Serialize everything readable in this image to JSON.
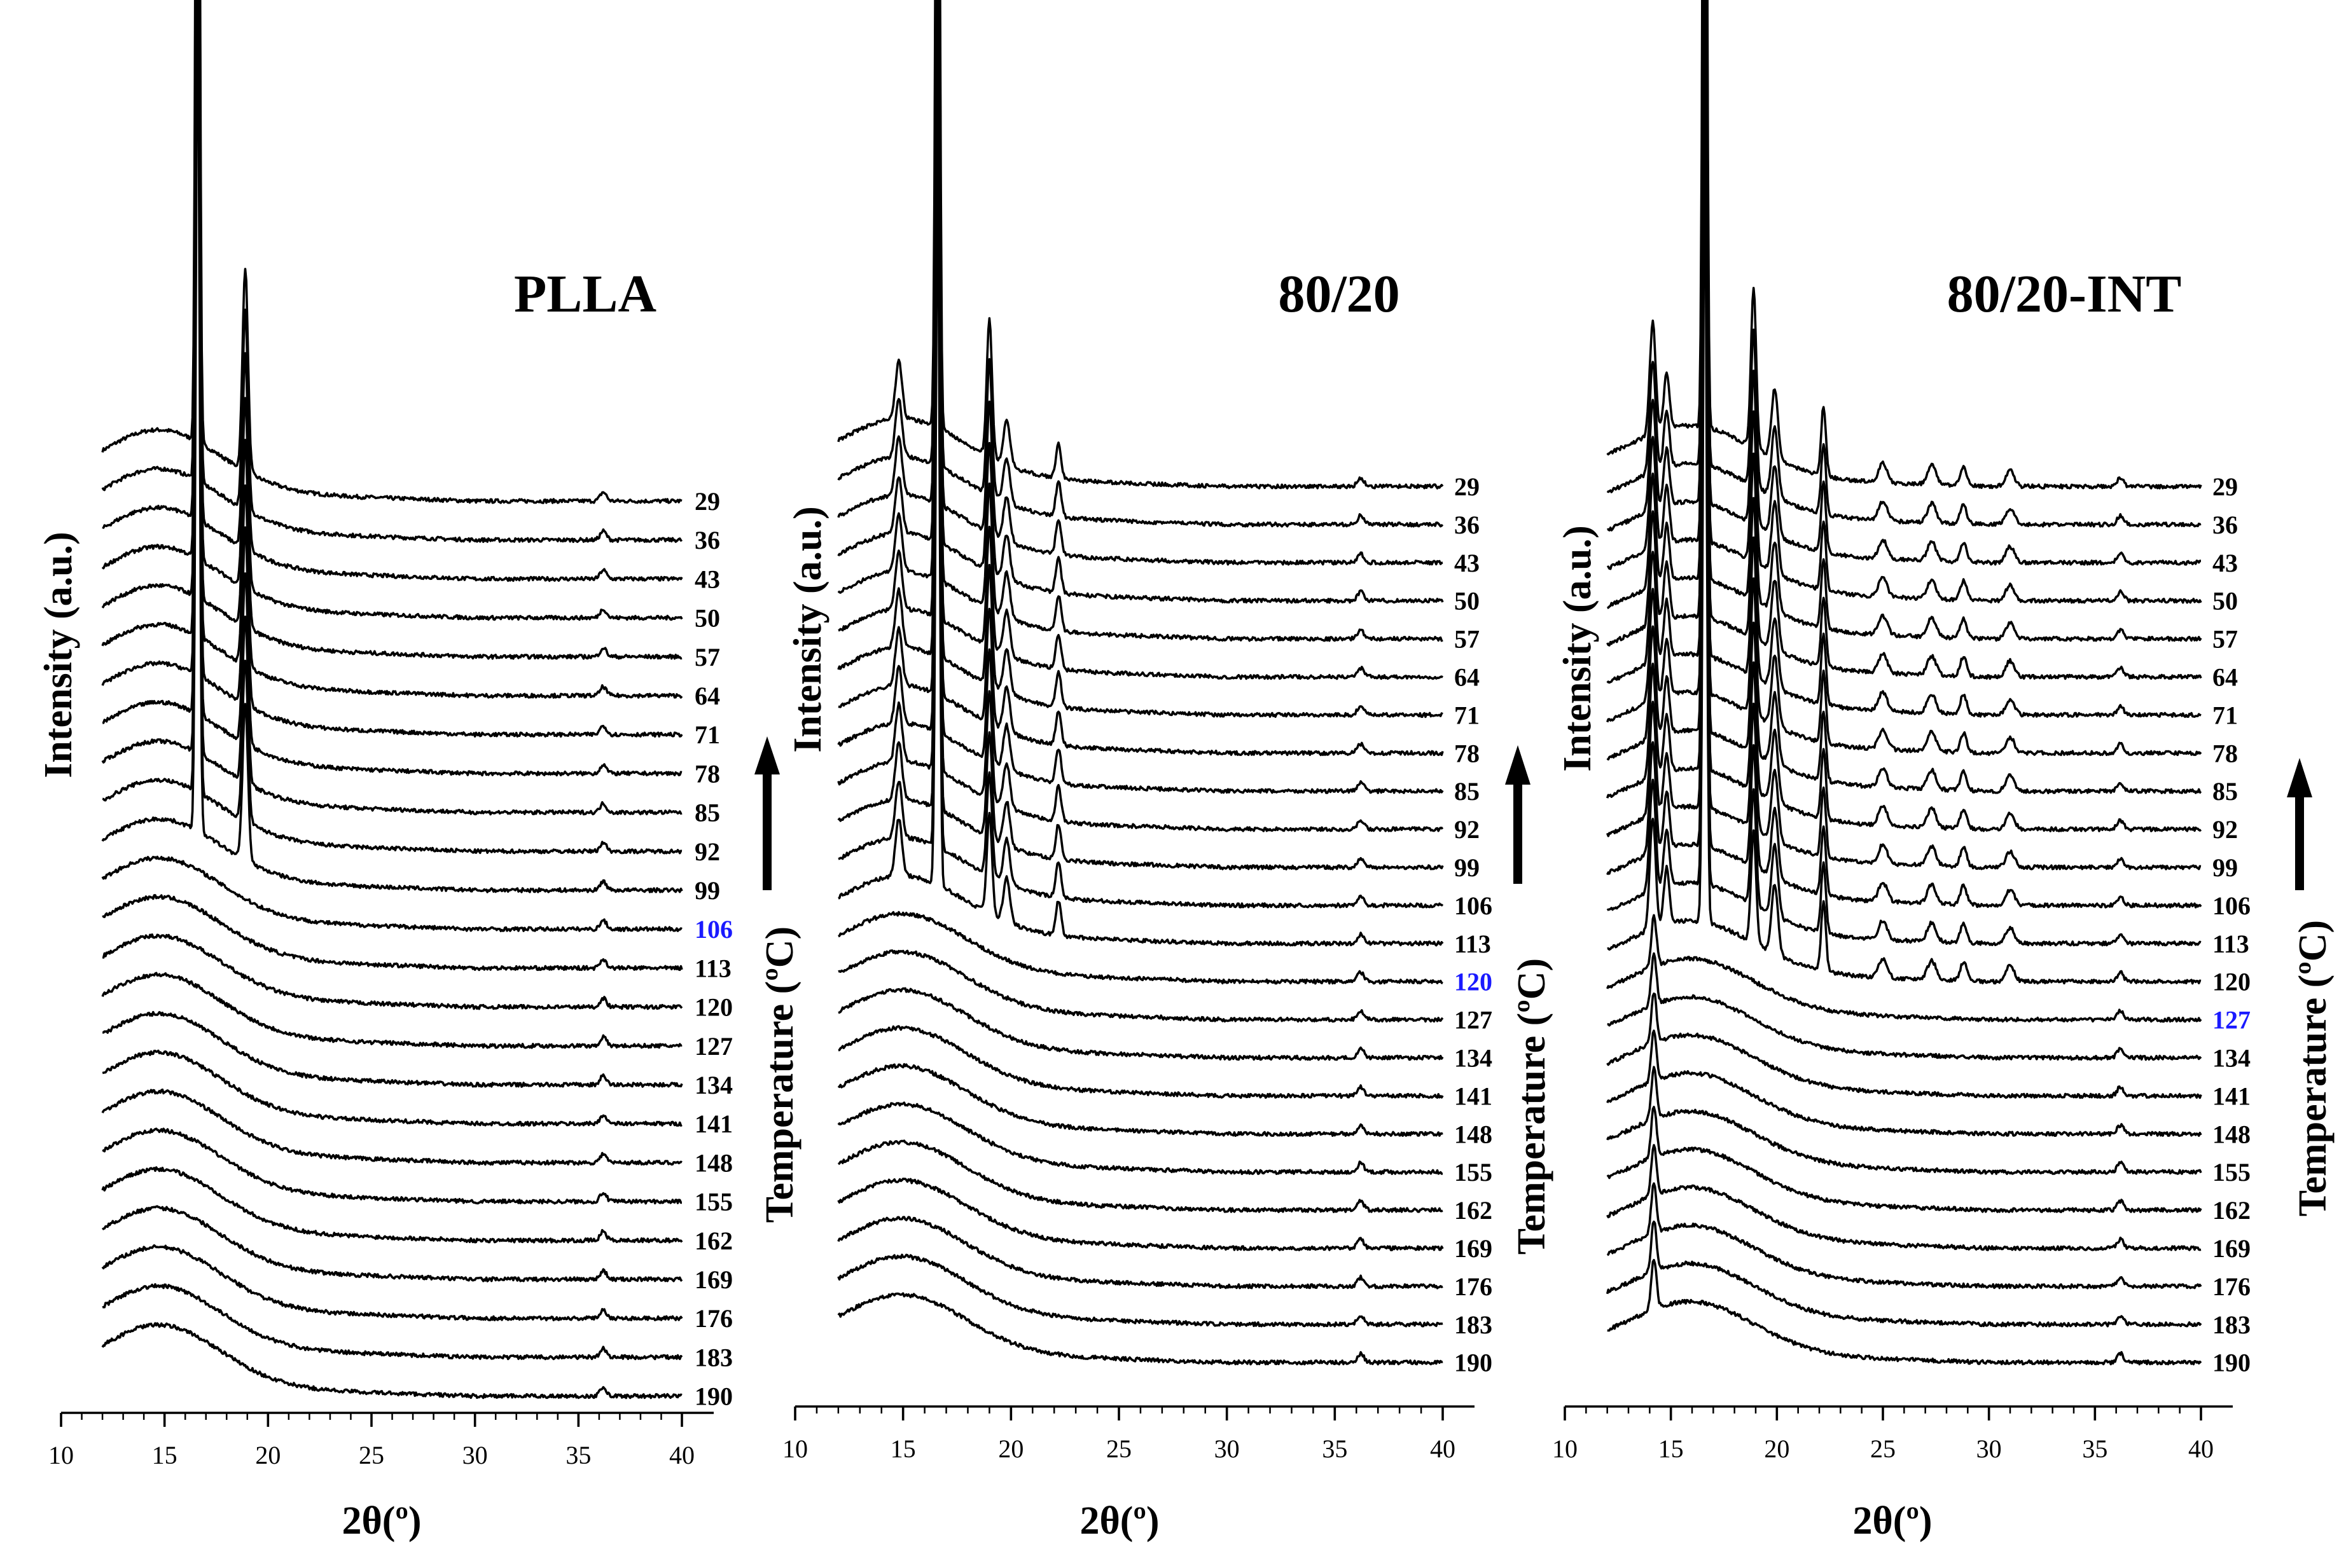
{
  "chart_data": [
    {
      "type": "line",
      "title": "PLLA",
      "xlabel": "2θ(º)",
      "ylabel": "Intensity (a.u.)",
      "side_label": "Temperature (ºC)",
      "xlim": [
        10,
        40
      ],
      "x_ticks": [
        10,
        15,
        20,
        25,
        30,
        35,
        40
      ],
      "x_range_of_traces": [
        12,
        40
      ],
      "temperatures": [
        29,
        36,
        43,
        50,
        57,
        64,
        71,
        78,
        85,
        92,
        99,
        106,
        113,
        120,
        127,
        134,
        141,
        148,
        155,
        162,
        169,
        176,
        183,
        190
      ],
      "highlighted_temperature": 106,
      "highlight_color": "#1a1aff",
      "crystalline_peaks_2theta": [
        16.6,
        18.9
      ],
      "crystalline_from_temperature": 99,
      "amorphous_halo_center": 14.8
    },
    {
      "type": "line",
      "title": "80/20",
      "xlabel": "2θ(º)",
      "ylabel": "Intensity (a.u.)",
      "side_label": "Temperature (ºC)",
      "xlim": [
        10,
        40
      ],
      "x_ticks": [
        10,
        15,
        20,
        25,
        30,
        35,
        40
      ],
      "x_range_of_traces": [
        12,
        40
      ],
      "temperatures": [
        29,
        36,
        43,
        50,
        57,
        64,
        71,
        78,
        85,
        92,
        99,
        106,
        113,
        120,
        127,
        134,
        141,
        148,
        155,
        162,
        169,
        176,
        183,
        190
      ],
      "highlighted_temperature": 120,
      "highlight_color": "#1a1aff",
      "crystalline_peaks_2theta": [
        14.8,
        16.6,
        19.0,
        19.8,
        22.2,
        36.2
      ],
      "crystalline_from_temperature": 113,
      "amorphous_halo_center": 15.0
    },
    {
      "type": "line",
      "title": "80/20-INT",
      "xlabel": "2θ(º)",
      "ylabel": "Intensity (a.u.)",
      "side_label": "Temperature (ºC)",
      "xlim": [
        10,
        40
      ],
      "x_ticks": [
        10,
        15,
        20,
        25,
        30,
        35,
        40
      ],
      "x_range_of_traces": [
        12,
        40
      ],
      "temperatures": [
        29,
        36,
        43,
        50,
        57,
        64,
        71,
        78,
        85,
        92,
        99,
        106,
        113,
        120,
        127,
        134,
        141,
        148,
        155,
        162,
        169,
        176,
        183,
        190
      ],
      "highlighted_temperature": 127,
      "highlight_color": "#1a1aff",
      "crystalline_peaks_2theta": [
        14.1,
        14.8,
        16.6,
        18.9,
        19.9,
        22.2,
        25.0,
        27.3,
        28.8,
        31.0
      ],
      "crystalline_from_temperature": 120,
      "amorphous_halo_center": 16.0,
      "persistent_peak_2theta": 14.2
    }
  ]
}
